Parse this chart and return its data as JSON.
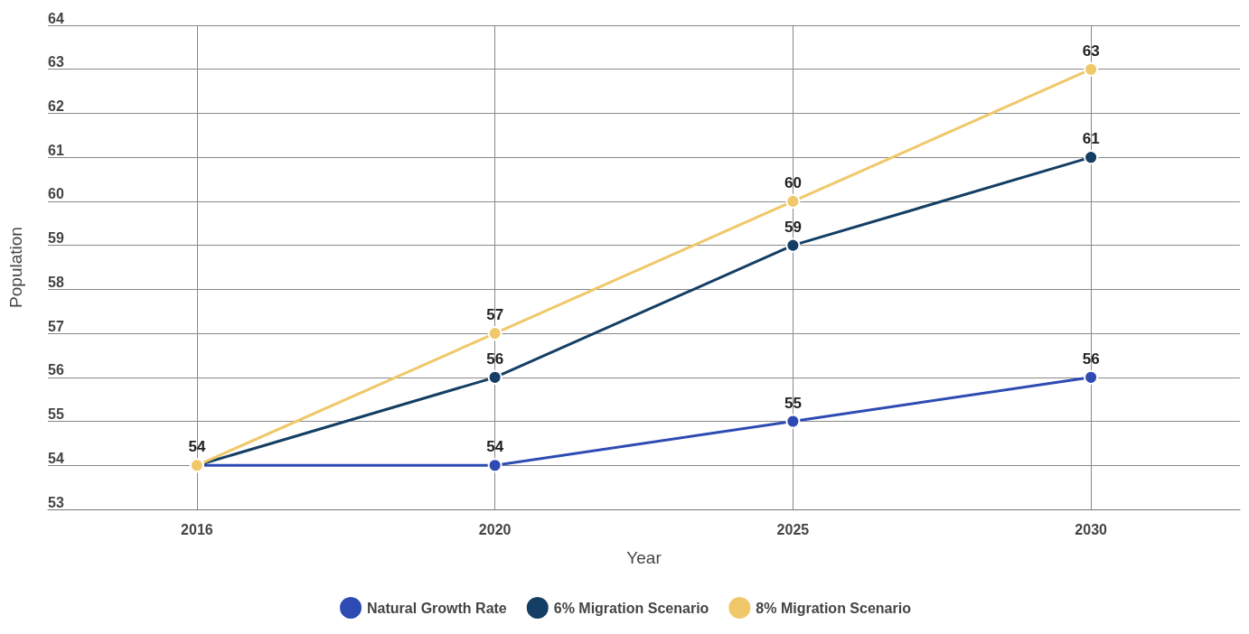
{
  "chart_data": {
    "type": "line",
    "xlabel": "Year",
    "ylabel": "Population",
    "categories": [
      "2016",
      "2020",
      "2025",
      "2030"
    ],
    "series": [
      {
        "name": "Natural Growth Rate",
        "color": "#2d4bb3",
        "values": [
          54,
          54,
          55,
          56
        ],
        "value_labels": [
          "54",
          "54",
          "55",
          "56"
        ]
      },
      {
        "name": "6% Migration Scenario",
        "color": "#143e64",
        "values": [
          54,
          56,
          59,
          61
        ],
        "value_labels": [
          null,
          "56",
          "59",
          "61"
        ]
      },
      {
        "name": "8% Migration Scenario",
        "color": "#f0c869",
        "values": [
          54,
          57,
          60,
          63
        ],
        "value_labels": [
          null,
          "57",
          "60",
          "63"
        ]
      }
    ],
    "ylim": [
      53,
      64
    ],
    "yticks": [
      53,
      54,
      55,
      56,
      57,
      58,
      59,
      60,
      61,
      62,
      63,
      64
    ],
    "grid": true,
    "legend": "bottom",
    "marker": "circle",
    "line_style": "solid"
  }
}
